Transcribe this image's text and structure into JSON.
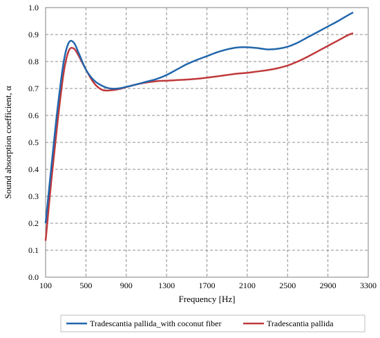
{
  "chart_data": {
    "type": "line",
    "xlabel": "Frequency [Hz]",
    "ylabel": "Sound absorption coefficient, α",
    "xlim": [
      100,
      3300
    ],
    "ylim": [
      0,
      1.0
    ],
    "x_ticks": [
      100,
      500,
      900,
      1300,
      1700,
      2100,
      2500,
      2900,
      3300
    ],
    "y_ticks": [
      "0.0",
      "0.1",
      "0.2",
      "0.3",
      "0.4",
      "0.5",
      "0.6",
      "0.7",
      "0.8",
      "0.9",
      "1.0"
    ],
    "grid": true,
    "legend_position": "bottom",
    "series": [
      {
        "name": "Tradescantia pallida_with coconut fiber",
        "color": "#2166ac",
        "x": [
          100,
          160,
          220,
          280,
          330,
          380,
          430,
          500,
          580,
          660,
          740,
          820,
          900,
          1000,
          1100,
          1200,
          1300,
          1400,
          1500,
          1600,
          1700,
          1800,
          1900,
          2000,
          2100,
          2200,
          2300,
          2400,
          2500,
          2600,
          2700,
          2800,
          2900,
          3000,
          3100,
          3150
        ],
        "y": [
          0.2,
          0.42,
          0.63,
          0.8,
          0.87,
          0.87,
          0.83,
          0.77,
          0.73,
          0.71,
          0.7,
          0.7,
          0.706,
          0.715,
          0.725,
          0.735,
          0.75,
          0.77,
          0.79,
          0.806,
          0.82,
          0.834,
          0.845,
          0.852,
          0.853,
          0.85,
          0.845,
          0.847,
          0.855,
          0.87,
          0.89,
          0.91,
          0.93,
          0.95,
          0.972,
          0.982
        ]
      },
      {
        "name": "Tradescantia pallida",
        "color": "#c0393b",
        "x": [
          100,
          160,
          220,
          280,
          330,
          380,
          430,
          500,
          580,
          660,
          740,
          820,
          900,
          1000,
          1100,
          1200,
          1300,
          1400,
          1500,
          1600,
          1700,
          1800,
          1900,
          2000,
          2100,
          2200,
          2300,
          2400,
          2500,
          2600,
          2700,
          2800,
          2900,
          3000,
          3100,
          3150
        ],
        "y": [
          0.135,
          0.37,
          0.58,
          0.76,
          0.84,
          0.848,
          0.82,
          0.77,
          0.72,
          0.695,
          0.693,
          0.697,
          0.705,
          0.715,
          0.722,
          0.727,
          0.729,
          0.731,
          0.733,
          0.736,
          0.74,
          0.745,
          0.75,
          0.755,
          0.758,
          0.763,
          0.768,
          0.775,
          0.785,
          0.8,
          0.818,
          0.838,
          0.858,
          0.878,
          0.898,
          0.905
        ]
      }
    ]
  }
}
